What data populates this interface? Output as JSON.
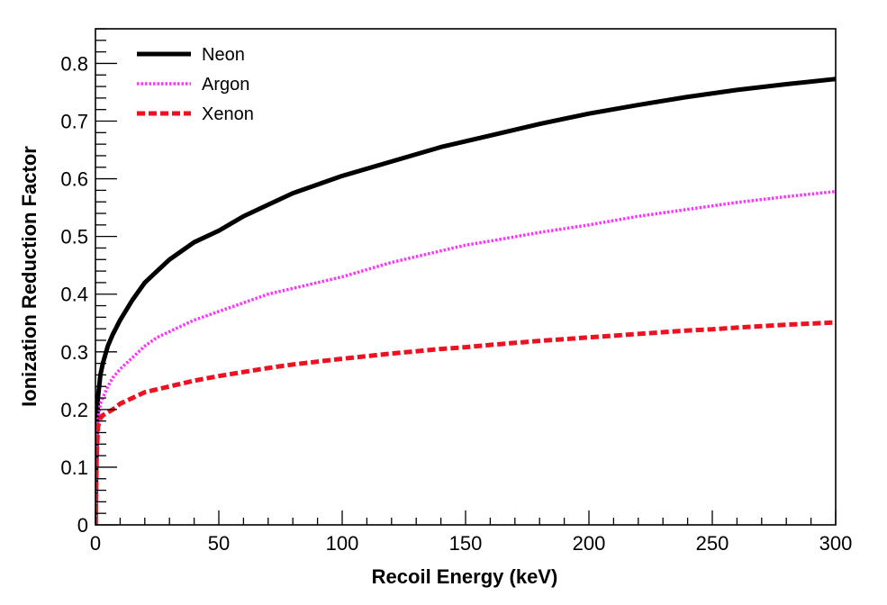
{
  "chart_data": {
    "type": "line",
    "title": "",
    "xlabel": "Recoil Energy (keV)",
    "ylabel": "Ionization Reduction Factor",
    "xlim": [
      0,
      300
    ],
    "ylim": [
      0,
      0.86
    ],
    "xticks": [
      0,
      50,
      100,
      150,
      200,
      250,
      300
    ],
    "xtick_labels": [
      "0",
      "50",
      "100",
      "150",
      "200",
      "250",
      "300"
    ],
    "yticks": [
      0,
      0.1,
      0.2,
      0.3,
      0.4,
      0.5,
      0.6,
      0.7,
      0.8
    ],
    "ytick_labels": [
      "0",
      "0.1",
      "0.2",
      "0.3",
      "0.4",
      "0.5",
      "0.6",
      "0.7",
      "0.8"
    ],
    "grid": false,
    "legend_position": "top-left",
    "series": [
      {
        "name": "Neon",
        "color": "#000000",
        "style": "solid",
        "x": [
          0.1,
          0.5,
          1,
          2,
          3,
          5,
          7,
          10,
          15,
          20,
          25,
          30,
          40,
          50,
          60,
          70,
          80,
          90,
          100,
          120,
          140,
          150,
          160,
          180,
          200,
          220,
          240,
          250,
          260,
          280,
          300
        ],
        "y": [
          0.04,
          0.15,
          0.22,
          0.26,
          0.28,
          0.31,
          0.33,
          0.355,
          0.39,
          0.42,
          0.44,
          0.46,
          0.49,
          0.51,
          0.535,
          0.555,
          0.575,
          0.59,
          0.605,
          0.63,
          0.655,
          0.665,
          0.675,
          0.695,
          0.713,
          0.728,
          0.742,
          0.748,
          0.754,
          0.764,
          0.773
        ]
      },
      {
        "name": "Argon",
        "color": "#ff33ff",
        "style": "dotted",
        "x": [
          0.1,
          0.5,
          1,
          2,
          3,
          5,
          7,
          10,
          15,
          20,
          25,
          30,
          40,
          50,
          60,
          70,
          80,
          90,
          100,
          120,
          140,
          150,
          160,
          180,
          200,
          220,
          240,
          250,
          260,
          280,
          300
        ],
        "y": [
          0.03,
          0.13,
          0.18,
          0.21,
          0.22,
          0.24,
          0.255,
          0.27,
          0.29,
          0.31,
          0.325,
          0.335,
          0.355,
          0.37,
          0.385,
          0.4,
          0.41,
          0.42,
          0.43,
          0.455,
          0.475,
          0.485,
          0.492,
          0.507,
          0.52,
          0.535,
          0.547,
          0.553,
          0.559,
          0.569,
          0.578
        ]
      },
      {
        "name": "Xenon",
        "color": "#ee1122",
        "style": "dashed",
        "x": [
          0.1,
          0.5,
          1,
          2,
          3,
          5,
          7,
          10,
          15,
          20,
          25,
          30,
          40,
          50,
          60,
          70,
          80,
          90,
          100,
          120,
          140,
          150,
          160,
          180,
          200,
          220,
          240,
          250,
          260,
          280,
          300
        ],
        "y": [
          0.02,
          0.12,
          0.17,
          0.185,
          0.19,
          0.195,
          0.2,
          0.21,
          0.22,
          0.23,
          0.235,
          0.24,
          0.25,
          0.258,
          0.265,
          0.272,
          0.278,
          0.283,
          0.288,
          0.297,
          0.305,
          0.308,
          0.312,
          0.319,
          0.325,
          0.331,
          0.337,
          0.339,
          0.342,
          0.347,
          0.351
        ]
      }
    ]
  }
}
